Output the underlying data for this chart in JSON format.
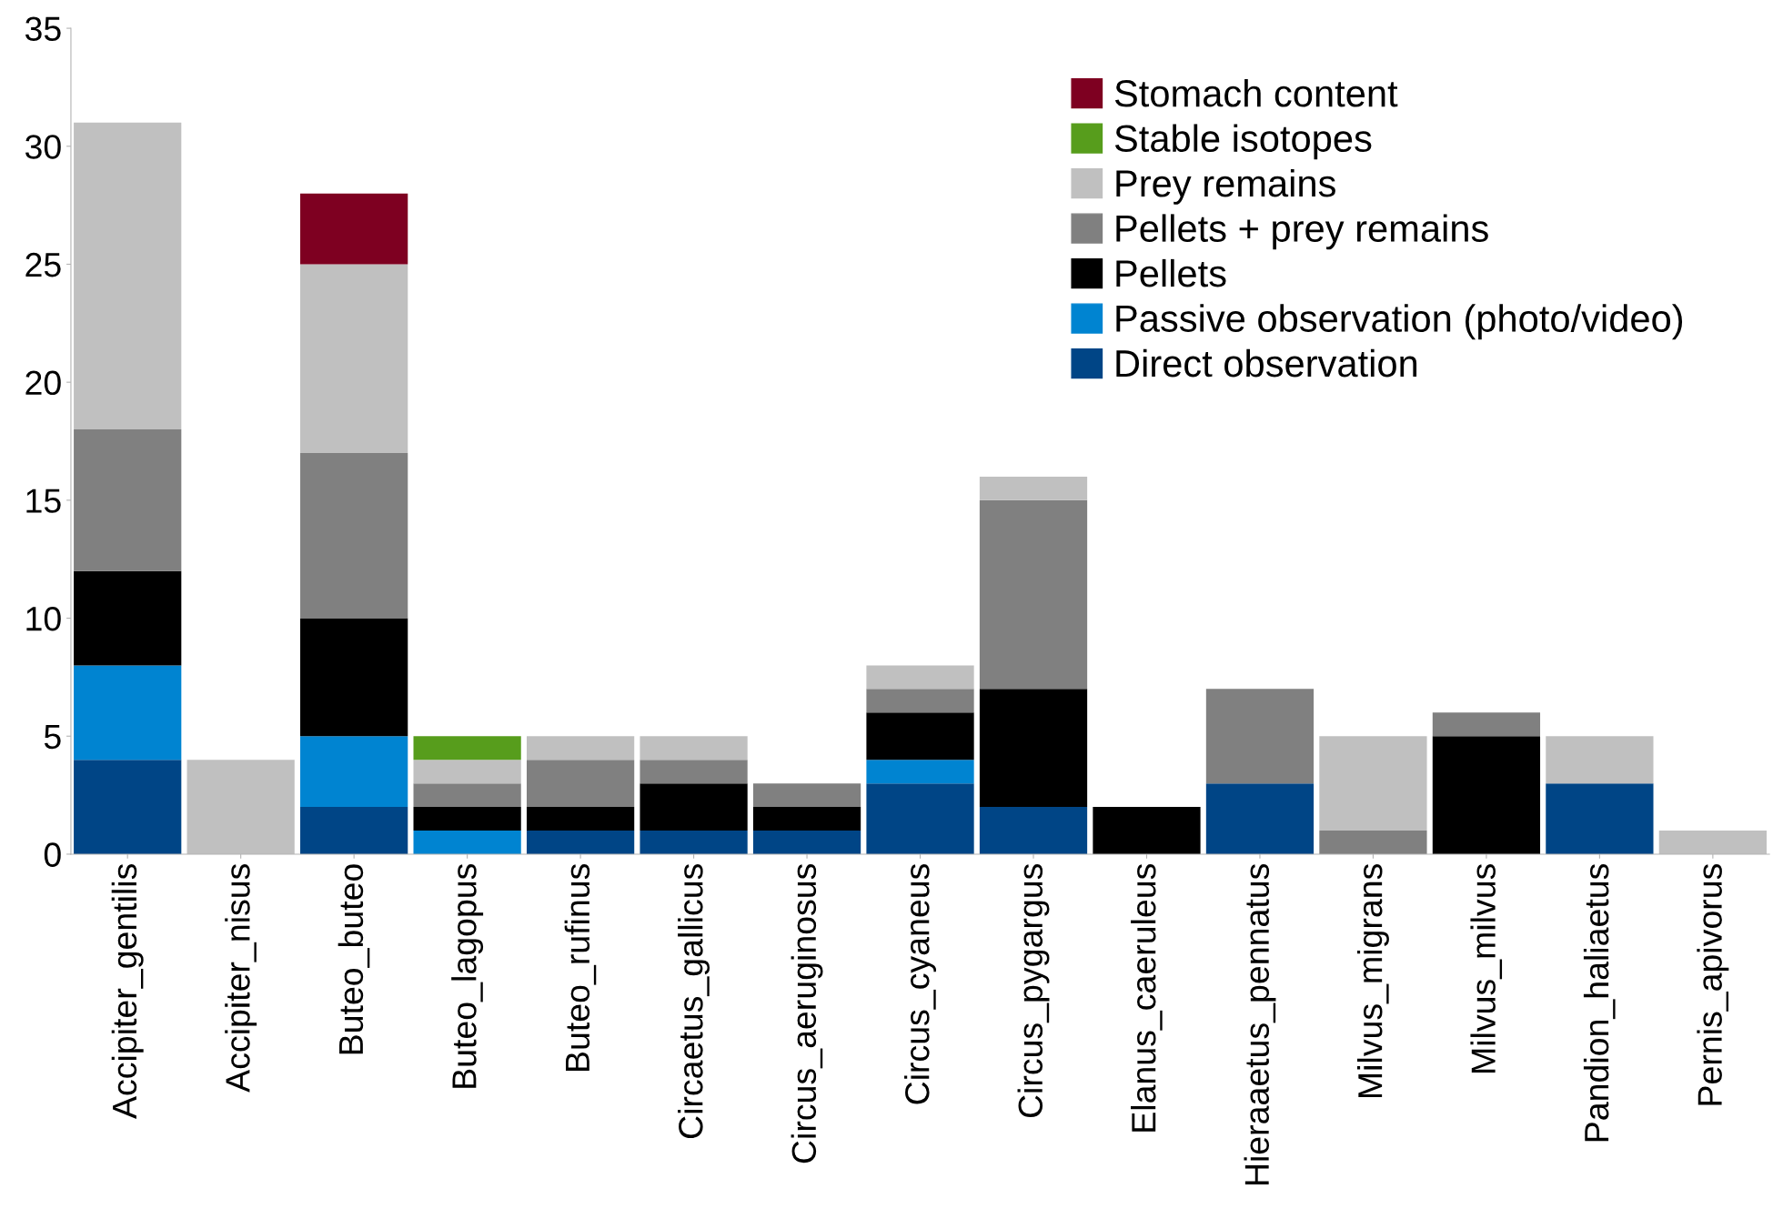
{
  "chart_data": {
    "type": "bar",
    "stacked": true,
    "categories": [
      "Accipiter_gentilis",
      "Accipiter_nisus",
      "Buteo_buteo",
      "Buteo_lagopus",
      "Buteo_rufinus",
      "Circaetus_gallicus",
      "Circus_aeruginosus",
      "Circus_cyaneus",
      "Circus_pygargus",
      "Elanus_caeruleus",
      "Hieraaetus_pennatus",
      "Milvus_migrans",
      "Milvus_milvus",
      "Pandion_haliaetus",
      "Pernis_apivorus"
    ],
    "series": [
      {
        "name": "Direct observation",
        "color": "#004586",
        "values": [
          4,
          0,
          2,
          0,
          1,
          1,
          1,
          3,
          2,
          0,
          3,
          0,
          0,
          3,
          0
        ]
      },
      {
        "name": "Passive observation (photo/video)",
        "color": "#0084d1",
        "values": [
          4,
          0,
          3,
          1,
          0,
          0,
          0,
          1,
          0,
          0,
          0,
          0,
          0,
          0,
          0
        ]
      },
      {
        "name": "Pellets",
        "color": "#000000",
        "values": [
          4,
          0,
          5,
          1,
          1,
          2,
          1,
          2,
          5,
          2,
          0,
          0,
          5,
          0,
          0
        ]
      },
      {
        "name": "Pellets + prey remains",
        "color": "#808080",
        "values": [
          6,
          0,
          7,
          1,
          2,
          1,
          1,
          1,
          8,
          0,
          4,
          1,
          1,
          0,
          0
        ]
      },
      {
        "name": "Prey remains",
        "color": "#c0c0c0",
        "values": [
          13,
          4,
          8,
          1,
          1,
          1,
          0,
          1,
          1,
          0,
          0,
          4,
          0,
          2,
          1
        ]
      },
      {
        "name": "Stable isotopes",
        "color": "#579d1c",
        "values": [
          0,
          0,
          0,
          1,
          0,
          0,
          0,
          0,
          0,
          0,
          0,
          0,
          0,
          0,
          0
        ]
      },
      {
        "name": "Stomach content",
        "color": "#7e0021",
        "values": [
          0,
          0,
          3,
          0,
          0,
          0,
          0,
          0,
          0,
          0,
          0,
          0,
          0,
          0,
          0
        ]
      }
    ],
    "ylim": [
      0,
      35
    ],
    "yticks": [
      0,
      5,
      10,
      15,
      20,
      25,
      30,
      35
    ],
    "grid": false,
    "legend": "top right"
  }
}
